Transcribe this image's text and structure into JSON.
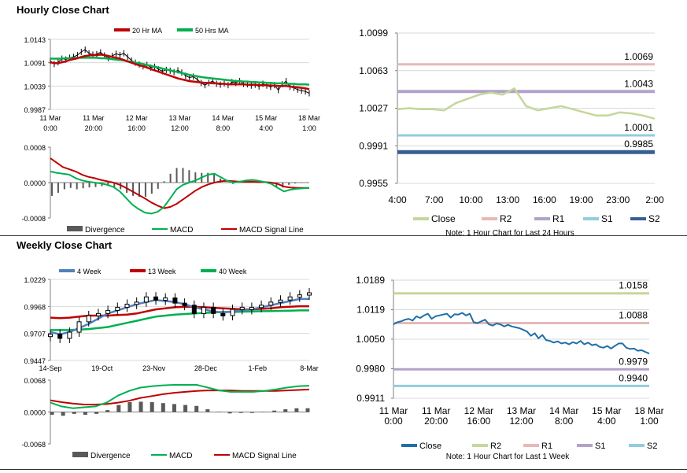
{
  "sections": {
    "hourly_title": "Hourly Close Chart",
    "weekly_title": "Weekly Close Chart"
  },
  "chart_data": [
    {
      "id": "hourly_price",
      "type": "line",
      "title": "",
      "legend": [
        "20 Hr MA",
        "50 Hrs MA"
      ],
      "legend_colors": [
        "#c00000",
        "#00b050"
      ],
      "y_ticks": [
        "1.0143",
        "1.0091",
        "1.0039",
        "0.9987"
      ],
      "ylim": [
        0.9987,
        1.0143
      ],
      "x_ticks": [
        [
          "11 Mar",
          "0:00"
        ],
        [
          "11 Mar",
          "20:00"
        ],
        [
          "12 Mar",
          "16:00"
        ],
        [
          "13 Mar",
          "12:00"
        ],
        [
          "14 Mar",
          "8:00"
        ],
        [
          "15 Mar",
          "4:00"
        ],
        [
          "18 Mar",
          "1:00"
        ]
      ],
      "series": [
        {
          "name": "Price",
          "color": "#000000",
          "values": [
            1.0095,
            1.0088,
            1.0092,
            1.01,
            1.0098,
            1.0102,
            1.0104,
            1.0108,
            1.0115,
            1.012,
            1.0112,
            1.0109,
            1.011,
            1.0114,
            1.0107,
            1.0101,
            1.0106,
            1.0111,
            1.0108,
            1.0112,
            1.0104,
            1.0096,
            1.0091,
            1.0087,
            1.0083,
            1.0086,
            1.008,
            1.0082,
            1.0076,
            1.0072,
            1.0075,
            1.0073,
            1.007,
            1.0074,
            1.0069,
            1.0062,
            1.0058,
            1.006,
            1.0054,
            1.0046,
            1.0041,
            1.0046,
            1.005,
            1.0044,
            1.0042,
            1.0045,
            1.0041,
            1.0048,
            1.0046,
            1.005,
            1.0044,
            1.0043,
            1.004,
            1.0042,
            1.0038,
            1.0044,
            1.004,
            1.0037,
            1.0041,
            1.003,
            1.0043,
            1.005,
            1.0037,
            1.0035,
            1.0031,
            1.0029,
            1.0027,
            1.0023
          ]
        },
        {
          "name": "20 Hr MA",
          "color": "#c00000",
          "values": [
            1.0092,
            1.009,
            1.009,
            1.0092,
            1.0094,
            1.0097,
            1.0099,
            1.0101,
            1.0104,
            1.0106,
            1.0107,
            1.0108,
            1.0108,
            1.0109,
            1.0108,
            1.0106,
            1.0104,
            1.0102,
            1.01,
            1.0097,
            1.0094,
            1.0091,
            1.0088,
            1.0085,
            1.0083,
            1.008,
            1.0077,
            1.0074,
            1.0071,
            1.0068,
            1.0065,
            1.0062,
            1.0059,
            1.0056,
            1.0054,
            1.0052,
            1.005,
            1.0049,
            1.0048,
            1.0047,
            1.0046,
            1.0046,
            1.0045,
            1.0045,
            1.0044,
            1.0044,
            1.0043,
            1.0043,
            1.0043,
            1.0043,
            1.0043,
            1.0042,
            1.0042,
            1.0042,
            1.0041,
            1.0041,
            1.0041,
            1.004,
            1.004,
            1.0039,
            1.0039,
            1.0039,
            1.0038,
            1.0037,
            1.0036,
            1.0035,
            1.0034,
            1.0032
          ]
        },
        {
          "name": "50 Hrs MA",
          "color": "#00b050",
          "values": [
            1.01,
            1.01,
            1.01,
            1.01,
            1.0101,
            1.0101,
            1.0101,
            1.0102,
            1.0102,
            1.0102,
            1.0102,
            1.0102,
            1.0102,
            1.0101,
            1.0101,
            1.01,
            1.0099,
            1.0098,
            1.0097,
            1.0096,
            1.0094,
            1.0093,
            1.0091,
            1.009,
            1.0088,
            1.0086,
            1.0084,
            1.0082,
            1.008,
            1.0078,
            1.0076,
            1.0074,
            1.0072,
            1.007,
            1.0068,
            1.0066,
            1.0064,
            1.0062,
            1.0061,
            1.0059,
            1.0058,
            1.0057,
            1.0056,
            1.0055,
            1.0054,
            1.0053,
            1.0052,
            1.0051,
            1.005,
            1.005,
            1.0049,
            1.0049,
            1.0048,
            1.0048,
            1.0047,
            1.0047,
            1.0046,
            1.0046,
            1.0045,
            1.0045,
            1.0045,
            1.0044,
            1.0044,
            1.0044,
            1.0043,
            1.0043,
            1.0043,
            1.0042
          ]
        }
      ]
    },
    {
      "id": "hourly_macd",
      "type": "bar",
      "legend": [
        "Divergence",
        "MACD",
        "MACD Signal Line"
      ],
      "legend_colors": [
        "#595959",
        "#00b050",
        "#c00000"
      ],
      "y_ticks": [
        "0.0008",
        "0.0000",
        "-0.0008"
      ],
      "ylim": [
        -0.0008,
        0.0008
      ],
      "series": [
        {
          "name": "MACD",
          "color": "#00b050",
          "values": [
            0.00025,
            0.00022,
            0.0002,
            0.00018,
            0.0001,
            5e-05,
            2e-05,
            0.0,
            -2e-05,
            -5e-05,
            -0.0001,
            -0.0002,
            -0.00035,
            -0.0005,
            -0.0006,
            -0.00068,
            -0.0007,
            -0.00066,
            -0.00055,
            -0.00035,
            -0.00015,
            -5e-05,
            0.0,
            5e-05,
            0.00012,
            0.00018,
            0.0002,
            0.00012,
            4e-05,
            0.0,
            2e-05,
            5e-05,
            6e-05,
            4e-05,
            1e-05,
            -3e-05,
            -0.00012,
            -0.0002,
            -0.00016,
            -0.00014,
            -0.00013,
            -0.00012
          ]
        },
        {
          "name": "MACD Signal Line",
          "color": "#c00000",
          "values": [
            0.00055,
            0.00045,
            0.00035,
            0.0003,
            0.00025,
            0.00018,
            0.00013,
            0.0001,
            6e-05,
            3e-05,
            0.0,
            -5e-05,
            -0.00012,
            -0.0002,
            -0.00028,
            -0.00036,
            -0.00045,
            -0.00052,
            -0.00058,
            -0.00055,
            -0.00048,
            -0.00038,
            -0.00028,
            -0.00018,
            -0.0001,
            -4e-05,
            0.0,
            3e-05,
            4e-05,
            3e-05,
            2e-05,
            2e-05,
            2e-05,
            1e-05,
            1e-05,
            0.0,
            -3e-05,
            -9e-05,
            -0.00011,
            -0.00012,
            -0.00012,
            -0.00012
          ]
        },
        {
          "name": "Divergence",
          "color": "#595959",
          "values": [
            -0.0003,
            -0.00023,
            -0.00015,
            -0.00012,
            -0.00015,
            -0.00013,
            -0.00011,
            -0.0001,
            -8e-05,
            -8e-05,
            -0.0001,
            -0.00015,
            -0.00023,
            -0.0003,
            -0.00032,
            -0.00032,
            -0.00025,
            -0.00014,
            3e-05,
            0.0002,
            0.00033,
            0.00033,
            0.00028,
            0.00023,
            0.00022,
            0.00022,
            0.0002,
            9e-05,
            0.0,
            -3e-05,
            0.0,
            3e-05,
            4e-05,
            3e-05,
            0.0,
            -3e-05,
            -9e-05,
            -0.00011,
            -5e-05,
            -2e-05,
            -1e-05,
            0.0
          ]
        }
      ]
    },
    {
      "id": "hourly_pivots",
      "type": "line",
      "y_ticks": [
        "1.0099",
        "1.0063",
        "1.0027",
        "0.9991",
        "0.9955"
      ],
      "ylim": [
        0.9955,
        1.0099
      ],
      "x_ticks": [
        "4:00",
        "7:00",
        "10:00",
        "13:00",
        "16:00",
        "19:00",
        "23:00",
        "2:00"
      ],
      "legend": [
        "Close",
        "R2",
        "R1",
        "S1",
        "S2"
      ],
      "legend_colors": [
        "#c4d79b",
        "#e6b9b8",
        "#b3a2c7",
        "#92cddc",
        "#376092"
      ],
      "levels": [
        {
          "name": "R2",
          "value": 1.0069,
          "label": "1.0069",
          "color": "#e6b9b8",
          "width": 3
        },
        {
          "name": "R1",
          "value": 1.0043,
          "label": "1.0043",
          "color": "#b3a2c7",
          "width": 4
        },
        {
          "name": "S1",
          "value": 1.0001,
          "label": "1.0001",
          "color": "#92cddc",
          "width": 3
        },
        {
          "name": "S2",
          "value": 0.9985,
          "label": "0.9985",
          "color": "#376092",
          "width": 5
        }
      ],
      "series": [
        {
          "name": "Close",
          "color": "#c4d79b",
          "values": [
            1.0026,
            1.0027,
            1.0026,
            1.0026,
            1.0025,
            1.0032,
            1.0036,
            1.004,
            1.0042,
            1.004,
            1.0046,
            1.0029,
            1.0025,
            1.0027,
            1.0029,
            1.0026,
            1.0023,
            1.002,
            1.002,
            1.0023,
            1.0022,
            1.002,
            1.0017
          ]
        }
      ],
      "note": "Note: 1 Hour Chart for Last 24 Hours"
    },
    {
      "id": "weekly_price",
      "type": "line",
      "legend": [
        "4 Week",
        "13 Week",
        "40 Week"
      ],
      "legend_colors": [
        "#4f81bd",
        "#c00000",
        "#00b050"
      ],
      "y_ticks": [
        "1.0229",
        "0.9968",
        "0.9707",
        "0.9447"
      ],
      "ylim": [
        0.9447,
        1.0229
      ],
      "x_ticks": [
        "14-Sep",
        "19-Oct",
        "23-Nov",
        "28-Dec",
        "1-Feb",
        "8-Mar"
      ],
      "series": [
        {
          "name": "Price",
          "color": "#000000",
          "values": [
            0.97,
            0.966,
            0.972,
            0.982,
            0.988,
            0.99,
            0.993,
            0.996,
            0.999,
            1.001,
            1.006,
            1.003,
            1.005,
            1.0,
            0.998,
            0.99,
            0.996,
            0.99,
            0.988,
            0.994,
            0.996,
            0.996,
            0.998,
            1.001,
            1.003,
            1.006,
            1.008,
            1.01
          ]
        },
        {
          "name": "4 Week",
          "color": "#4f81bd",
          "values": [
            0.972,
            0.97,
            0.972,
            0.976,
            0.98,
            0.985,
            0.99,
            0.993,
            0.996,
            0.999,
            1.001,
            1.003,
            1.002,
            1.001,
            0.999,
            0.996,
            0.994,
            0.992,
            0.991,
            0.992,
            0.993,
            0.994,
            0.996,
            0.998,
            1.0,
            1.002,
            1.004,
            1.004
          ]
        },
        {
          "name": "13 Week",
          "color": "#c00000",
          "values": [
            0.986,
            0.9855,
            0.986,
            0.987,
            0.988,
            0.988,
            0.988,
            0.9885,
            0.989,
            0.99,
            0.992,
            0.994,
            0.995,
            0.996,
            0.9965,
            0.9965,
            0.996,
            0.9955,
            0.995,
            0.9945,
            0.994,
            0.994,
            0.9945,
            0.995,
            0.996,
            0.9965,
            0.997,
            0.997
          ]
        },
        {
          "name": "40 Week",
          "color": "#00b050",
          "values": [
            0.974,
            0.974,
            0.974,
            0.9745,
            0.975,
            0.976,
            0.977,
            0.979,
            0.981,
            0.983,
            0.985,
            0.987,
            0.988,
            0.989,
            0.9895,
            0.99,
            0.9905,
            0.991,
            0.9915,
            0.9915,
            0.9918,
            0.992,
            0.9922,
            0.9924,
            0.9925,
            0.9927,
            0.993,
            0.993
          ]
        }
      ]
    },
    {
      "id": "weekly_macd",
      "type": "bar",
      "legend": [
        "Divergence",
        "MACD",
        "MACD Signal Line"
      ],
      "legend_colors": [
        "#595959",
        "#00b050",
        "#c00000"
      ],
      "y_ticks": [
        "0.0068",
        "0.0000",
        "-0.0068"
      ],
      "ylim": [
        -0.0068,
        0.0068
      ],
      "series": [
        {
          "name": "MACD",
          "color": "#00b050",
          "values": [
            0.002,
            0.0012,
            0.0008,
            0.001,
            0.0012,
            0.002,
            0.0035,
            0.0045,
            0.0052,
            0.0055,
            0.0057,
            0.0058,
            0.0058,
            0.0058,
            0.0052,
            0.0046,
            0.0043,
            0.0043,
            0.0043,
            0.0045,
            0.0048,
            0.0052,
            0.0055,
            0.0056
          ]
        },
        {
          "name": "MACD Signal Line",
          "color": "#c00000",
          "values": [
            0.0025,
            0.0021,
            0.0018,
            0.0016,
            0.0016,
            0.0017,
            0.002,
            0.0024,
            0.003,
            0.0034,
            0.0038,
            0.0041,
            0.0043,
            0.0045,
            0.0046,
            0.0046,
            0.0046,
            0.0045,
            0.0045,
            0.0045,
            0.0045,
            0.0046,
            0.0047,
            0.0048
          ]
        },
        {
          "name": "Divergence",
          "color": "#595959",
          "values": [
            -0.0006,
            -0.0008,
            -0.0004,
            -0.0006,
            -0.0004,
            0.0004,
            0.0015,
            0.0021,
            0.0022,
            0.0021,
            0.0019,
            0.0017,
            0.0015,
            0.0013,
            0.0006,
            0.0,
            -0.0003,
            -0.0002,
            -0.0002,
            0.0,
            0.0003,
            0.0006,
            0.0008,
            0.0008
          ]
        }
      ]
    },
    {
      "id": "weekly_pivots",
      "type": "line",
      "y_ticks": [
        "1.0189",
        "1.0119",
        "1.0050",
        "0.9980",
        "0.9911"
      ],
      "ylim": [
        0.9911,
        1.0189
      ],
      "x_ticks": [
        [
          "11 Mar",
          "0:00"
        ],
        [
          "11 Mar",
          "20:00"
        ],
        [
          "12 Mar",
          "16:00"
        ],
        [
          "13 Mar",
          "12:00"
        ],
        [
          "14 Mar",
          "8:00"
        ],
        [
          "15 Mar",
          "4:00"
        ],
        [
          "18 Mar",
          "1:00"
        ]
      ],
      "legend": [
        "Close",
        "R2",
        "R1",
        "S1",
        "S2"
      ],
      "legend_colors": [
        "#1f6fa8",
        "#c4d79b",
        "#e6b9b8",
        "#b3a2c7",
        "#92cddc"
      ],
      "levels": [
        {
          "name": "R2",
          "value": 1.0158,
          "label": "1.0158",
          "color": "#c4d79b",
          "width": 3
        },
        {
          "name": "R1",
          "value": 1.0088,
          "label": "1.0088",
          "color": "#e6b9b8",
          "width": 3
        },
        {
          "name": "S1",
          "value": 0.9979,
          "label": "0.9979",
          "color": "#b3a2c7",
          "width": 3
        },
        {
          "name": "S2",
          "value": 0.994,
          "label": "0.9940",
          "color": "#92cddc",
          "width": 3
        }
      ],
      "series": [
        {
          "name": "Close",
          "color": "#1f6fa8",
          "values": [
            1.0085,
            1.009,
            1.0092,
            1.0096,
            1.0098,
            1.0094,
            1.0104,
            1.01,
            1.0106,
            1.011,
            1.0098,
            1.0104,
            1.0106,
            1.0108,
            1.011,
            1.0101,
            1.0109,
            1.0108,
            1.0112,
            1.0106,
            1.011,
            1.009,
            1.0088,
            1.0092,
            1.0096,
            1.0085,
            1.0082,
            1.0087,
            1.0085,
            1.008,
            1.0084,
            1.008,
            1.0078,
            1.0076,
            1.0072,
            1.0068,
            1.0058,
            1.0064,
            1.0052,
            1.006,
            1.0048,
            1.0046,
            1.0042,
            1.0045,
            1.004,
            1.0042,
            1.0038,
            1.0043,
            1.004,
            1.0046,
            1.0038,
            1.0042,
            1.0036,
            1.0038,
            1.0032,
            1.003,
            1.0034,
            1.0028,
            1.0034,
            1.004,
            1.004,
            1.003,
            1.0027,
            1.0028,
            1.0023,
            1.0024,
            1.002,
            1.0016
          ]
        }
      ],
      "note": "Note: 1 Hour Chart for Last 1 Week"
    }
  ]
}
